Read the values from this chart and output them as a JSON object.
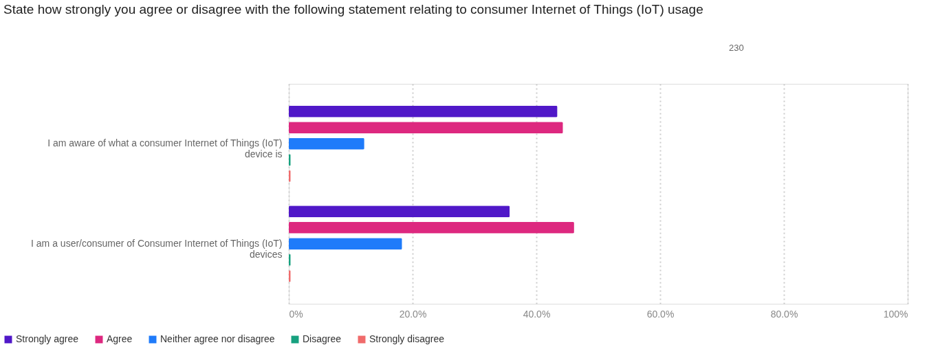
{
  "chart_data": {
    "type": "bar",
    "orientation": "horizontal",
    "title": "State how strongly you agree or disagree with the following statement relating to consumer Internet of Things (IoT) usage",
    "annotations": [
      "230"
    ],
    "categories": [
      "I am aware of what a consumer Internet of Things (IoT) device is",
      "I am a user/consumer of Consumer Internet of Things (IoT) devices"
    ],
    "series": [
      {
        "name": "Strongly agree",
        "color": "#5018c8",
        "values": [
          43.4,
          35.7
        ]
      },
      {
        "name": "Agree",
        "color": "#dd287f",
        "values": [
          44.3,
          46.1
        ]
      },
      {
        "name": "Neither agree nor disagree",
        "color": "#1f7bfa",
        "values": [
          12.2,
          18.3
        ]
      },
      {
        "name": "Disagree",
        "color": "#17a17f",
        "values": [
          0.3,
          0.3
        ]
      },
      {
        "name": "Strongly disagree",
        "color": "#f06b6b",
        "values": [
          0.3,
          0.3
        ]
      }
    ],
    "xlim": [
      0,
      100
    ],
    "xticks": [
      {
        "value": 0,
        "label": "0%"
      },
      {
        "value": 20,
        "label": "20.0%"
      },
      {
        "value": 40,
        "label": "40.0%"
      },
      {
        "value": 60,
        "label": "60.0%"
      },
      {
        "value": 80,
        "label": "80.0%"
      },
      {
        "value": 100,
        "label": "100%"
      }
    ],
    "grid": "x",
    "legend": "bottom left"
  }
}
